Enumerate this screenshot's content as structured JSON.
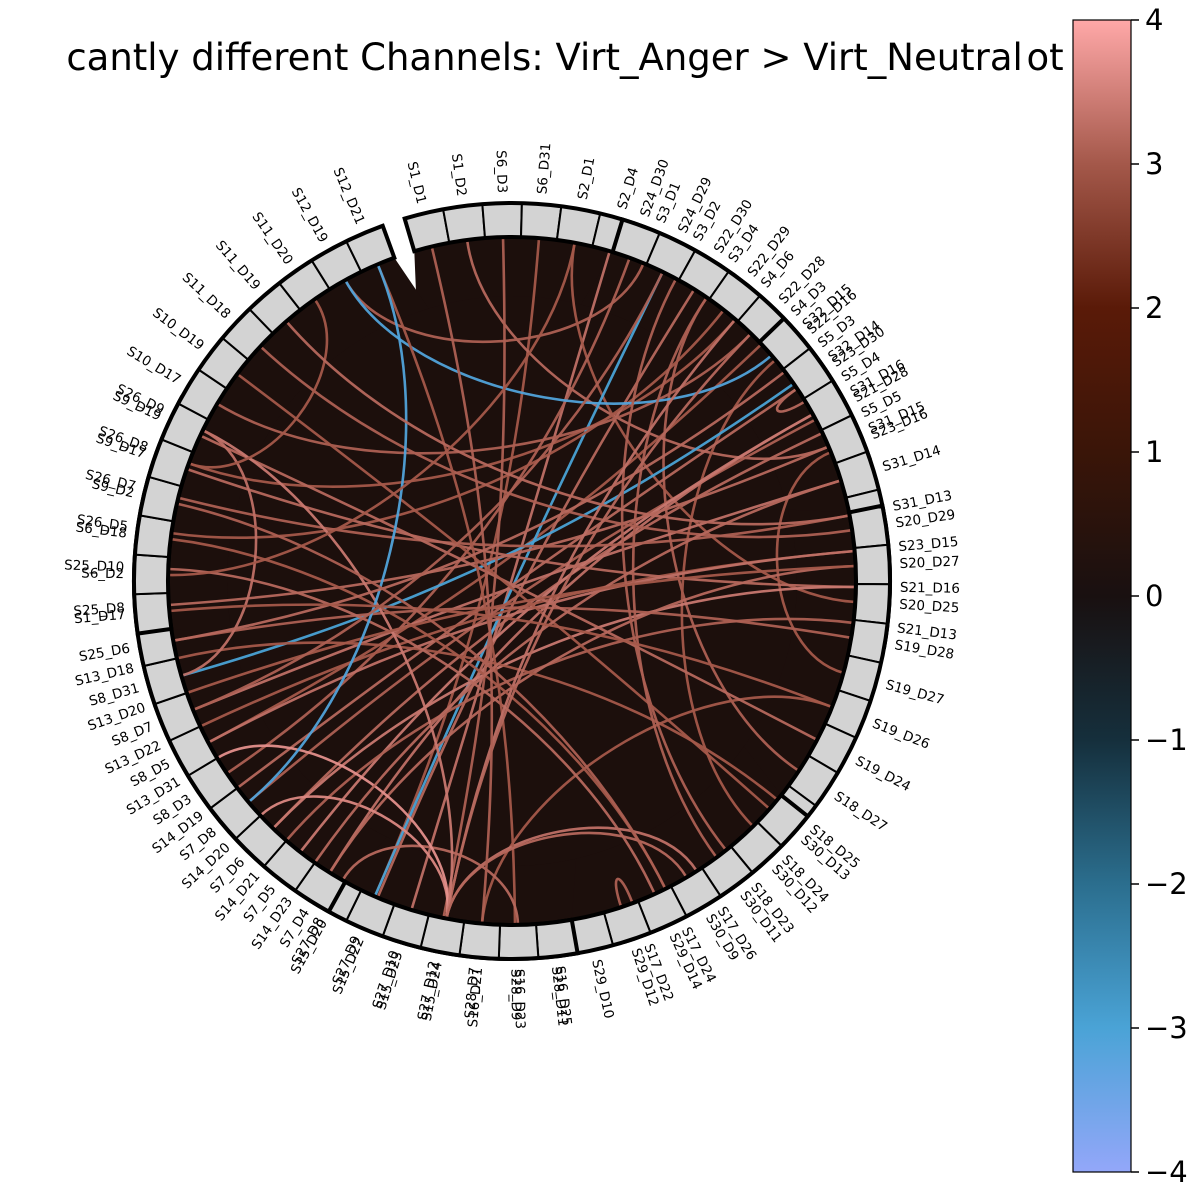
{
  "chart_data": {
    "type": "chord",
    "title": "cantly different Channels: Virt_Anger > Virt_Neutral",
    "title_clipped_right": "ot",
    "background_color": "#1c0f0c",
    "groups": [
      {
        "channels": [
          "S1_D1",
          "S1_D2",
          "S6_D3",
          "S6_D31",
          "S2_D1",
          "S2_D4",
          "S3_D1",
          "S3_D2",
          "S3_D4",
          "S4_D6",
          "S4_D3",
          "S5_D3",
          "S5_D4",
          "S5_D5"
        ]
      },
      {
        "channels": [
          "S24_D30",
          "S24_D29",
          "S22_D30",
          "S22_D29",
          "S22_D28",
          "S22_D16",
          "S23_D30",
          "S21_D28",
          "S23_D16"
        ]
      },
      {
        "channels": [
          "S32_D15",
          "S32_D14",
          "S31_D16",
          "S31_D15",
          "S31_D14",
          "S31_D13",
          "S23_D15",
          "S21_D16",
          "S21_D13"
        ]
      },
      {
        "channels": [
          "S20_D29",
          "S20_D27",
          "S20_D25",
          "S19_D28",
          "S19_D27",
          "S19_D26",
          "S19_D24",
          "S18_D27",
          "S18_D25",
          "S18_D24",
          "S18_D23",
          "S17_D26",
          "S17_D24",
          "S17_D22"
        ]
      },
      {
        "channels": [
          "S30_D13",
          "S30_D12",
          "S30_D11",
          "S30_D9",
          "S29_D14",
          "S29_D12",
          "S29_D10",
          "S28_D11",
          "S28_D9",
          "S28_D7",
          "S27_D12",
          "S27_D10",
          "S27_D9",
          "S27_D8"
        ]
      },
      {
        "channels": [
          "S16_D25",
          "S16_D23",
          "S16_D21",
          "S15_D24",
          "S15_D23",
          "S15_D22",
          "S15_D20",
          "S14_D23",
          "S14_D21",
          "S14_D20",
          "S14_D19",
          "S13_D31",
          "S13_D22",
          "S13_D20",
          "S13_D18"
        ]
      },
      {
        "channels": [
          "S7_D4",
          "S7_D5",
          "S7_D6",
          "S7_D8",
          "S8_D3",
          "S8_D5",
          "S8_D7",
          "S8_D31",
          "S25_D6",
          "S25_D8",
          "S25_D10",
          "S26_D5",
          "S26_D7",
          "S26_D8",
          "S26_D9"
        ]
      },
      {
        "channels": [
          "S1_D17",
          "S6_D2",
          "S6_D18",
          "S9_D2",
          "S9_D17",
          "S9_D19",
          "S10_D17",
          "S10_D19",
          "S11_D18",
          "S11_D19",
          "S11_D20",
          "S12_D19",
          "S12_D21"
        ]
      }
    ],
    "connections": [
      {
        "a": "S5_D5",
        "b": "S7_D6",
        "t": 3.2
      },
      {
        "a": "S4_D6",
        "b": "S26_D8",
        "t": 3.0
      },
      {
        "a": "S3_D4",
        "b": "S18_D27",
        "t": 3.1
      },
      {
        "a": "S2_D4",
        "b": "S15_D23",
        "t": 3.3
      },
      {
        "a": "S6_D31",
        "b": "S27_D9",
        "t": 3.0
      },
      {
        "a": "S1_D2",
        "b": "S31_D15",
        "t": 3.2
      },
      {
        "a": "S3_D1",
        "b": "S12_D19",
        "t": 3.1
      },
      {
        "a": "S4_D3",
        "b": "S8_D5",
        "t": 3.0
      },
      {
        "a": "S5_D4",
        "b": "S23_D30",
        "t": 3.2
      },
      {
        "a": "S2_D1",
        "b": "S20_D25",
        "t": 3.0
      },
      {
        "a": "S24_D29",
        "b": "S27_D9",
        "t": -3.0
      },
      {
        "a": "S24_D30",
        "b": "S8_D3",
        "t": 3.1
      },
      {
        "a": "S22_D30",
        "b": "S15_D22",
        "t": 3.2
      },
      {
        "a": "S22_D29",
        "b": "S26_D5",
        "t": 3.0
      },
      {
        "a": "S22_D28",
        "b": "S10_D17",
        "t": 3.1
      },
      {
        "a": "S22_D16",
        "b": "S18_D24",
        "t": 3.0
      },
      {
        "a": "S23_D30",
        "b": "S14_D19",
        "t": 3.2
      },
      {
        "a": "S21_D28",
        "b": "S7_D8",
        "t": 3.1
      },
      {
        "a": "S23_D16",
        "b": "S19_D27",
        "t": 3.0
      },
      {
        "a": "S32_D15",
        "b": "S12_D19",
        "t": -3.1
      },
      {
        "a": "S32_D14",
        "b": "S8_D31",
        "t": -3.0
      },
      {
        "a": "S31_D16",
        "b": "S7_D4",
        "t": 3.3
      },
      {
        "a": "S31_D16",
        "b": "S7_D5",
        "t": 3.4
      },
      {
        "a": "S31_D15",
        "b": "S25_D8",
        "t": 3.2
      },
      {
        "a": "S31_D14",
        "b": "S8_D7",
        "t": 3.3
      },
      {
        "a": "S31_D13",
        "b": "S26_D7",
        "t": 3.1
      },
      {
        "a": "S23_D15",
        "b": "S13_D22",
        "t": 3.0
      },
      {
        "a": "S21_D16",
        "b": "S9_D17",
        "t": 3.2
      },
      {
        "a": "S21_D13",
        "b": "S14_D21",
        "t": 3.1
      },
      {
        "a": "S21_D16",
        "b": "S7_D6",
        "t": 3.4
      },
      {
        "a": "S23_D15",
        "b": "S8_D5",
        "t": 3.3
      },
      {
        "a": "S20_D29",
        "b": "S11_D18",
        "t": 3.1
      },
      {
        "a": "S20_D27",
        "b": "S7_D4",
        "t": 3.2
      },
      {
        "a": "S19_D28",
        "b": "S25_D6",
        "t": 3.1
      },
      {
        "a": "S19_D26",
        "b": "S16_D21",
        "t": 3.0
      },
      {
        "a": "S19_D24",
        "b": "S9_D19",
        "t": 3.2
      },
      {
        "a": "S18_D25",
        "b": "S13_D18",
        "t": 3.0
      },
      {
        "a": "S18_D23",
        "b": "S3_D2",
        "t": 3.1
      },
      {
        "a": "S17_D26",
        "b": "S15_D24",
        "t": 3.3
      },
      {
        "a": "S17_D24",
        "b": "S6_D18",
        "t": 3.0
      },
      {
        "a": "S17_D22",
        "b": "S29_D12",
        "t": 3.1
      },
      {
        "a": "S30_D13",
        "b": "S10_D19",
        "t": 3.0
      },
      {
        "a": "S30_D11",
        "b": "S3_D4",
        "t": 3.1
      },
      {
        "a": "S29_D14",
        "b": "S25_D10",
        "t": 3.2
      },
      {
        "a": "S28_D9",
        "b": "S12_D21",
        "t": 3.0
      },
      {
        "a": "S27_D12",
        "b": "S6_D3",
        "t": 3.1
      },
      {
        "a": "S27_D8",
        "b": "S16_D23",
        "t": 3.2
      },
      {
        "a": "S15_D24",
        "b": "S14_D20",
        "t": 3.6
      },
      {
        "a": "S15_D24",
        "b": "S13_D31",
        "t": 3.7
      },
      {
        "a": "S15_D24",
        "b": "S4_D6",
        "t": 3.3
      },
      {
        "a": "S15_D24",
        "b": "S22_D28",
        "t": 3.2
      },
      {
        "a": "S15_D24",
        "b": "S26_D9",
        "t": 3.4
      },
      {
        "a": "S15_D24",
        "b": "S30_D9",
        "t": 3.2
      },
      {
        "a": "S16_D21",
        "b": "S1_D1",
        "t": 3.1
      },
      {
        "a": "S14_D23",
        "b": "S31_D14",
        "t": 3.2
      },
      {
        "a": "S13_D20",
        "b": "S20_D27",
        "t": 3.0
      },
      {
        "a": "S8_D31",
        "b": "S26_D9",
        "t": 3.3
      },
      {
        "a": "S7_D8",
        "b": "S12_D21",
        "t": -3.1
      },
      {
        "a": "S26_D8",
        "b": "S11_D20",
        "t": 3.0
      },
      {
        "a": "S25_D6",
        "b": "S5_D3",
        "t": 3.2
      },
      {
        "a": "S8_D7",
        "b": "S24_D29",
        "t": 3.1
      },
      {
        "a": "S1_D17",
        "b": "S19_D26",
        "t": 3.0
      },
      {
        "a": "S9_D2",
        "b": "S17_D24",
        "t": 3.1
      },
      {
        "a": "S11_D19",
        "b": "S31_D13",
        "t": 3.2
      },
      {
        "a": "S6_D2",
        "b": "S2_D1",
        "t": 3.0
      }
    ]
  },
  "colorbar": {
    "ticks": [
      "4",
      "3",
      "2",
      "1",
      "0",
      "−1",
      "−2",
      "−3",
      "−4"
    ],
    "vmin": -4,
    "vmax": 4,
    "colors": [
      "#93a7f9",
      "#4aa3d6",
      "#2b6e8e",
      "#152f3c",
      "#191010",
      "#3a1508",
      "#5a1a08",
      "#a4584a",
      "#ffa8a8"
    ]
  }
}
